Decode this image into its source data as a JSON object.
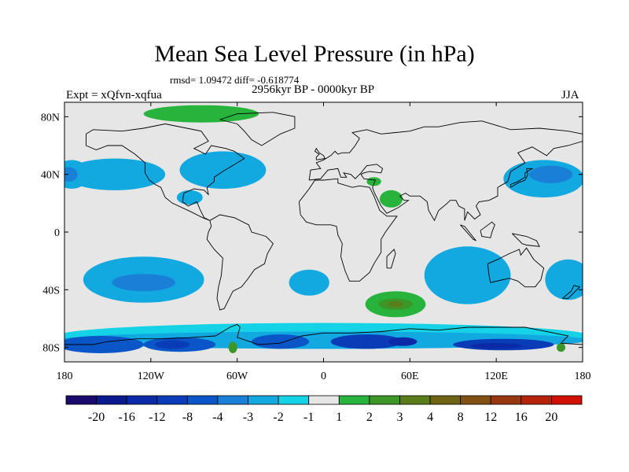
{
  "figure": {
    "title": "Mean Sea Level Pressure (in hPa)",
    "stats": "rmsd= 1.09472 diff= -0.618774",
    "period": "2956kyr BP - 0000kyr BP",
    "experiment": "Expt = xQfvn-xqfua",
    "season": "JJA"
  },
  "chart_data": {
    "type": "heatmap",
    "title": "Mean Sea Level Pressure (in hPa)",
    "projection": "cylindrical equidistant",
    "xlim": [
      -180,
      180
    ],
    "ylim": [
      -90,
      90
    ],
    "x_ticks": [
      {
        "value": -180,
        "label": "180"
      },
      {
        "value": -120,
        "label": "120W"
      },
      {
        "value": -60,
        "label": "60W"
      },
      {
        "value": 0,
        "label": "0"
      },
      {
        "value": 60,
        "label": "60E"
      },
      {
        "value": 120,
        "label": "120E"
      },
      {
        "value": 180,
        "label": "180"
      }
    ],
    "y_ticks": [
      {
        "value": 80,
        "label": "80N"
      },
      {
        "value": 40,
        "label": "40N"
      },
      {
        "value": 0,
        "label": "0"
      },
      {
        "value": -40,
        "label": "40S"
      },
      {
        "value": -80,
        "label": "80S"
      }
    ],
    "colorbar": {
      "colors": [
        "#1a0a6e",
        "#0a1a8c",
        "#0a2aa8",
        "#0a3cb8",
        "#0a55c8",
        "#1a7fd6",
        "#12a8e0",
        "#15d2e6",
        "#e6e6e6",
        "#28b43c",
        "#3c9628",
        "#5a7d19",
        "#6e6414",
        "#825014",
        "#96370f",
        "#b4230a",
        "#d20f05"
      ],
      "levels": [
        -20,
        -16,
        -12,
        -8,
        -4,
        -3,
        -2,
        -1,
        1,
        2,
        3,
        4,
        8,
        12,
        16,
        20
      ],
      "level_labels": [
        "-20",
        "-16",
        "-12",
        "-8",
        "-4",
        "-3",
        "-2",
        "-1",
        "1",
        "2",
        "3",
        "4",
        "8",
        "12",
        "16",
        "20"
      ]
    },
    "anomaly_regions": [
      {
        "name": "north-pacific-east-low",
        "lon": -145,
        "lat": 40,
        "rx": 35,
        "ry": 11,
        "value": -2
      },
      {
        "name": "north-pacific-west-low",
        "lon": -175,
        "lat": 40,
        "rx": 12,
        "ry": 10,
        "value": -2
      },
      {
        "name": "north-pacific-west-core",
        "lon": -177,
        "lat": 40,
        "rx": 6,
        "ry": 5,
        "value": -3
      },
      {
        "name": "north-atlantic-low",
        "lon": -70,
        "lat": 43,
        "rx": 30,
        "ry": 13,
        "value": -2
      },
      {
        "name": "gulf-of-mexico-low",
        "lon": -93,
        "lat": 24,
        "rx": 9,
        "ry": 5,
        "value": -2
      },
      {
        "name": "northwest-pacific-low",
        "lon": 153,
        "lat": 37,
        "rx": 28,
        "ry": 13,
        "value": -2
      },
      {
        "name": "northwest-pacific-core",
        "lon": 158,
        "lat": 40,
        "rx": 15,
        "ry": 6,
        "value": -3
      },
      {
        "name": "arabia-high",
        "lon": 47,
        "lat": 23,
        "rx": 8,
        "ry": 6,
        "value": 2
      },
      {
        "name": "mediterranean-high",
        "lon": 35,
        "lat": 35,
        "rx": 5,
        "ry": 3,
        "value": 2
      },
      {
        "name": "arctic-high",
        "lon": -85,
        "lat": 82,
        "rx": 40,
        "ry": 6,
        "value": 2
      },
      {
        "name": "south-pacific-low",
        "lon": -125,
        "lat": -33,
        "rx": 42,
        "ry": 16,
        "value": -2
      },
      {
        "name": "south-pacific-core",
        "lon": -125,
        "lat": -35,
        "rx": 22,
        "ry": 6,
        "value": -3
      },
      {
        "name": "south-atlantic-low",
        "lon": -10,
        "lat": -35,
        "rx": 14,
        "ry": 9,
        "value": -2
      },
      {
        "name": "south-indian-low",
        "lon": 100,
        "lat": -30,
        "rx": 30,
        "ry": 20,
        "value": -2
      },
      {
        "name": "southwest-pacific-low",
        "lon": 170,
        "lat": -33,
        "rx": 16,
        "ry": 14,
        "value": -2
      },
      {
        "name": "southern-indian-high",
        "lon": 50,
        "lat": -50,
        "rx": 21,
        "ry": 9,
        "value": 2
      },
      {
        "name": "southern-indian-high-core",
        "lon": 50,
        "lat": -50,
        "rx": 12,
        "ry": 4,
        "value": 3
      },
      {
        "name": "southern-indian-high-peak",
        "lon": 50,
        "lat": -50,
        "rx": 5,
        "ry": 2,
        "value": 4
      },
      {
        "name": "southern-ocean-band",
        "lon": 0,
        "lat": -72,
        "rx": 185,
        "ry": 9,
        "value": -1
      },
      {
        "name": "southern-ocean-band-2",
        "lon": 0,
        "lat": -75,
        "rx": 185,
        "ry": 6,
        "value": -2
      },
      {
        "name": "ross-sea-low",
        "lon": -155,
        "lat": -78,
        "rx": 30,
        "ry": 6,
        "value": -4
      },
      {
        "name": "amundsen-low",
        "lon": -100,
        "lat": -78,
        "rx": 25,
        "ry": 5,
        "value": -4
      },
      {
        "name": "amundsen-core",
        "lon": -105,
        "lat": -78,
        "rx": 12,
        "ry": 3,
        "value": -8
      },
      {
        "name": "weddell-low",
        "lon": -30,
        "lat": -76,
        "rx": 20,
        "ry": 5,
        "value": -4
      },
      {
        "name": "east-antarctic-low",
        "lon": 30,
        "lat": -76,
        "rx": 25,
        "ry": 5,
        "value": -8
      },
      {
        "name": "east-antarctic-core",
        "lon": 55,
        "lat": -76,
        "rx": 10,
        "ry": 3,
        "value": -12
      },
      {
        "name": "wilkes-low",
        "lon": 125,
        "lat": -78,
        "rx": 35,
        "ry": 4,
        "value": -8
      },
      {
        "name": "wilkes-core",
        "lon": 120,
        "lat": -79,
        "rx": 18,
        "ry": 2,
        "value": -12
      },
      {
        "name": "antarctic-peninsula-high",
        "lon": -63,
        "lat": -80,
        "rx": 3,
        "ry": 4,
        "value": 3
      },
      {
        "name": "ross-high-spot",
        "lon": 165,
        "lat": -80,
        "rx": 3,
        "ry": 3,
        "value": 3
      }
    ]
  }
}
